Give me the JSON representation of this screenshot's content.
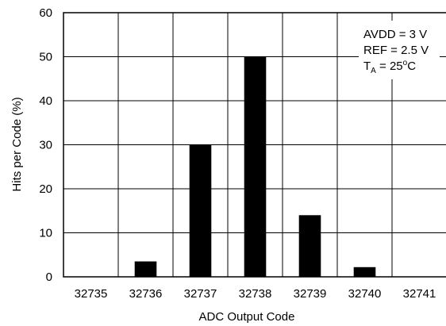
{
  "chart_data": {
    "type": "bar",
    "categories": [
      "32735",
      "32736",
      "32737",
      "32738",
      "32739",
      "32740",
      "32741"
    ],
    "values": [
      0,
      3.5,
      30,
      50,
      14,
      2.2,
      0
    ],
    "xlabel": "ADC Output Code",
    "ylabel": "Hits per Code (%)",
    "ylim": [
      0,
      60
    ],
    "yticks": [
      "0",
      "10",
      "20",
      "30",
      "40",
      "50",
      "60"
    ],
    "grid": true,
    "bar_color": "#000000",
    "annotations": {
      "line1": "AVDD = 3 V",
      "line2": "REF = 2.5 V",
      "line3_prefix": "T",
      "line3_sub": "A",
      "line3_value": " = 25",
      "line3_deg": "o",
      "line3_unit": "C"
    }
  }
}
